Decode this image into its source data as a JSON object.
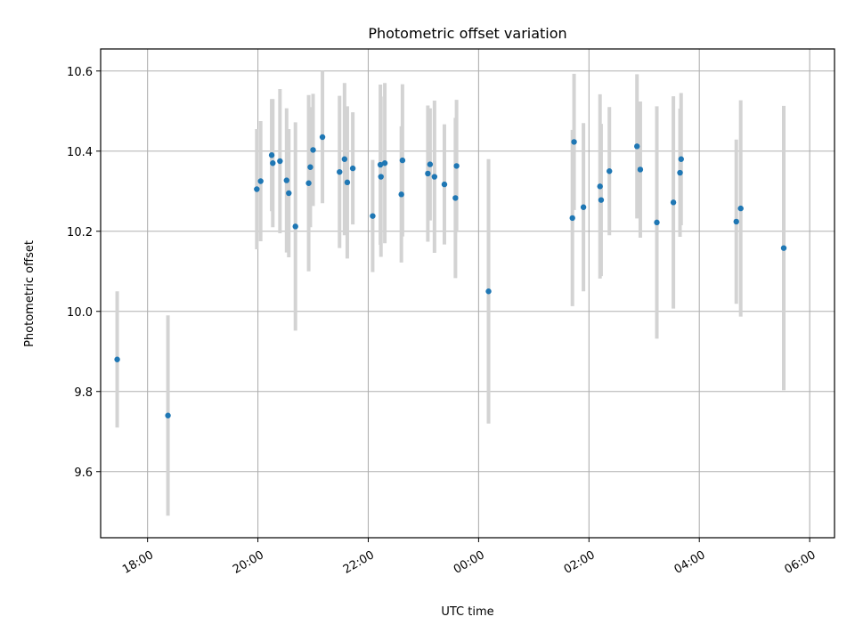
{
  "chart_data": {
    "type": "scatter",
    "title": "Photometric offset variation",
    "xlabel": "UTC time",
    "ylabel": "Photometric offset",
    "x_unit": "hours",
    "xlim": [
      17.15,
      30.45
    ],
    "ylim": [
      9.435,
      10.655
    ],
    "grid": true,
    "legend": "none",
    "x_ticks": [
      {
        "value": 18,
        "label": "18:00"
      },
      {
        "value": 20,
        "label": "20:00"
      },
      {
        "value": 22,
        "label": "22:00"
      },
      {
        "value": 24,
        "label": "00:00"
      },
      {
        "value": 26,
        "label": "02:00"
      },
      {
        "value": 28,
        "label": "04:00"
      },
      {
        "value": 30,
        "label": "06:00"
      }
    ],
    "y_ticks": [
      {
        "value": 9.6,
        "label": "9.6"
      },
      {
        "value": 9.8,
        "label": "9.8"
      },
      {
        "value": 10.0,
        "label": "10.0"
      },
      {
        "value": 10.2,
        "label": "10.2"
      },
      {
        "value": 10.4,
        "label": "10.4"
      },
      {
        "value": 10.6,
        "label": "10.6"
      }
    ],
    "colors": {
      "point": "#1f77b4",
      "errorbar": "#d3d3d3",
      "grid": "#b0b0b0"
    },
    "series": [
      {
        "x": [
          17.45,
          18.37,
          19.98,
          20.05,
          20.25,
          20.27,
          20.4,
          20.52,
          20.56,
          20.68,
          20.92,
          20.95,
          21.0,
          21.17,
          21.48,
          21.57,
          21.62,
          21.72,
          22.08,
          22.22,
          22.23,
          22.3,
          22.6,
          22.62,
          23.08,
          23.12,
          23.2,
          23.38,
          23.58,
          23.6,
          24.18,
          25.7,
          25.73,
          25.9,
          26.2,
          26.22,
          26.37,
          26.87,
          26.93,
          27.23,
          27.53,
          27.65,
          27.67,
          28.67,
          28.75,
          29.53
        ],
        "y": [
          9.88,
          9.74,
          10.305,
          10.325,
          10.39,
          10.37,
          10.375,
          10.327,
          10.295,
          10.212,
          10.32,
          10.36,
          10.403,
          10.435,
          10.348,
          10.38,
          10.322,
          10.357,
          10.238,
          10.366,
          10.336,
          10.37,
          10.292,
          10.377,
          10.344,
          10.367,
          10.336,
          10.317,
          10.283,
          10.363,
          10.05,
          10.233,
          10.423,
          10.26,
          10.312,
          10.278,
          10.35,
          10.412,
          10.354,
          10.222,
          10.272,
          10.346,
          10.38,
          10.224,
          10.257,
          10.158
        ],
        "yerr": [
          0.17,
          0.25,
          0.15,
          0.15,
          0.14,
          0.16,
          0.18,
          0.18,
          0.16,
          0.26,
          0.22,
          0.15,
          0.14,
          0.165,
          0.19,
          0.19,
          0.19,
          0.14,
          0.14,
          0.2,
          0.2,
          0.2,
          0.17,
          0.19,
          0.17,
          0.14,
          0.19,
          0.15,
          0.2,
          0.165,
          0.33,
          0.22,
          0.17,
          0.21,
          0.23,
          0.19,
          0.16,
          0.18,
          0.17,
          0.29,
          0.265,
          0.16,
          0.165,
          0.205,
          0.27,
          0.355
        ]
      }
    ]
  }
}
